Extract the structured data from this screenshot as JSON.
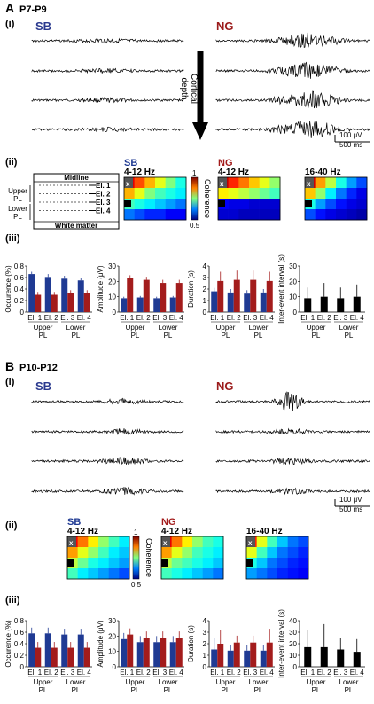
{
  "colors": {
    "sb": "#1f3a93",
    "ng": "#a31c1c",
    "black": "#000000"
  },
  "panels": [
    {
      "id": "A",
      "letter": "A",
      "age": "P7-P9",
      "traces": {
        "label": "(i)",
        "sb_label": "SB",
        "ng_label": "NG",
        "arrow_label": "Cortical\ndepth",
        "scale_amp": "100 μV",
        "scale_time": "500 ms"
      },
      "coherence": {
        "label": "(ii)",
        "schematic": {
          "midline": "Midline",
          "white_matter": "White matter",
          "upper_pl": "Upper\nPL",
          "lower_pl": "Lower\nPL",
          "electrodes": [
            "El. 1",
            "El. 2",
            "El. 3",
            "El. 4"
          ]
        },
        "maps": [
          {
            "group": "SB",
            "band": "4-12 Hz",
            "rows": 4,
            "cols": 6,
            "vals": [
              0.95,
              0.9,
              0.85,
              0.8,
              0.75,
              0.7,
              0.85,
              0.8,
              0.75,
              0.72,
              0.7,
              0.68,
              0.72,
              0.7,
              0.68,
              0.66,
              0.64,
              0.62,
              0.62,
              0.6,
              0.58,
              0.58,
              0.56,
              0.56
            ]
          },
          {
            "group": "NG",
            "band": "4-12 Hz",
            "rows": 4,
            "cols": 6,
            "vals": [
              0.97,
              0.92,
              0.88,
              0.84,
              0.8,
              0.76,
              0.82,
              0.8,
              0.78,
              0.76,
              0.74,
              0.72,
              0.56,
              0.55,
              0.55,
              0.54,
              0.54,
              0.54,
              0.54,
              0.54,
              0.53,
              0.53,
              0.53,
              0.53
            ]
          },
          {
            "group": "",
            "band": "16-40 Hz",
            "rows": 4,
            "cols": 6,
            "vals": [
              0.96,
              0.86,
              0.78,
              0.7,
              0.64,
              0.6,
              0.84,
              0.76,
              0.68,
              0.62,
              0.58,
              0.55,
              0.7,
              0.64,
              0.6,
              0.57,
              0.55,
              0.54,
              0.6,
              0.57,
              0.55,
              0.54,
              0.53,
              0.52
            ]
          }
        ],
        "colorbar": {
          "max": "1",
          "min": "0.5",
          "label": "Coherence"
        }
      },
      "bars": {
        "label": "(iii)",
        "groups": [
          "Upper\nPL",
          "Lower\nPL"
        ],
        "categories": [
          "El. 1",
          "El. 2",
          "El. 3",
          "El. 4"
        ],
        "charts": [
          {
            "ylabel": "Occurence (%)",
            "ylim": [
              0,
              0.8
            ],
            "ticks": [
              "0",
              "0.2",
              "0.4",
              "0.6",
              "0.8"
            ],
            "sb": [
              0.66,
              0.61,
              0.58,
              0.55
            ],
            "ng": [
              0.3,
              0.3,
              0.33,
              0.33
            ],
            "sb_err": [
              0.04,
              0.05,
              0.05,
              0.05
            ],
            "ng_err": [
              0.05,
              0.05,
              0.05,
              0.05
            ]
          },
          {
            "ylabel": "Amplitude (μV)",
            "ylim": [
              0,
              30
            ],
            "ticks": [
              "0",
              "10",
              "20",
              "30"
            ],
            "sb": [
              9,
              9.5,
              9,
              9.5
            ],
            "ng": [
              22,
              21,
              19,
              19
            ],
            "sb_err": [
              1,
              1,
              1,
              1
            ],
            "ng_err": [
              2,
              2,
              2,
              2
            ]
          },
          {
            "ylabel": "Duration (s)",
            "ylim": [
              0,
              4
            ],
            "ticks": [
              "0",
              "1",
              "2",
              "3",
              "4"
            ],
            "sb": [
              1.8,
              1.7,
              1.6,
              1.7
            ],
            "ng": [
              2.7,
              2.8,
              2.8,
              2.7
            ],
            "sb_err": [
              0.3,
              0.3,
              0.3,
              0.3
            ],
            "ng_err": [
              0.8,
              0.8,
              0.8,
              0.8
            ]
          },
          {
            "ylabel": "Inter-event interval (s)",
            "ylim": [
              0,
              30
            ],
            "ticks": [
              "0",
              "10",
              "20",
              "30"
            ],
            "single": [
              9,
              10,
              9,
              10
            ],
            "single_err": [
              7,
              9,
              7,
              8
            ]
          }
        ]
      }
    },
    {
      "id": "B",
      "letter": "B",
      "age": "P10-P12",
      "traces": {
        "label": "(i)",
        "sb_label": "SB",
        "ng_label": "NG",
        "scale_amp": "100 μV",
        "scale_time": "500 ms"
      },
      "coherence": {
        "label": "(ii)",
        "maps": [
          {
            "group": "SB",
            "band": "4-12 Hz",
            "rows": 4,
            "cols": 6,
            "vals": [
              0.94,
              0.88,
              0.82,
              0.76,
              0.72,
              0.68,
              0.86,
              0.8,
              0.76,
              0.72,
              0.68,
              0.66,
              0.78,
              0.74,
              0.7,
              0.68,
              0.66,
              0.64,
              0.72,
              0.68,
              0.66,
              0.64,
              0.62,
              0.6
            ]
          },
          {
            "group": "NG",
            "band": "4-12 Hz",
            "rows": 4,
            "cols": 6,
            "vals": [
              0.95,
              0.88,
              0.82,
              0.76,
              0.72,
              0.7,
              0.86,
              0.8,
              0.76,
              0.72,
              0.7,
              0.68,
              0.78,
              0.74,
              0.72,
              0.7,
              0.68,
              0.66,
              0.72,
              0.7,
              0.68,
              0.66,
              0.64,
              0.62
            ]
          },
          {
            "group": "",
            "band": "16-40 Hz",
            "rows": 4,
            "cols": 6,
            "vals": [
              0.92,
              0.8,
              0.72,
              0.66,
              0.62,
              0.6,
              0.8,
              0.72,
              0.66,
              0.62,
              0.6,
              0.58,
              0.7,
              0.66,
              0.62,
              0.6,
              0.58,
              0.57,
              0.64,
              0.62,
              0.6,
              0.58,
              0.57,
              0.56
            ]
          }
        ],
        "colorbar": {
          "max": "1",
          "min": "0.5",
          "label": "Coherence"
        }
      },
      "bars": {
        "label": "(iii)",
        "groups": [
          "Upper\nPL",
          "Lower\nPL"
        ],
        "categories": [
          "El. 1",
          "El. 2",
          "El. 3",
          "El. 4"
        ],
        "charts": [
          {
            "ylabel": "Occurence (%)",
            "ylim": [
              0,
              0.8
            ],
            "ticks": [
              "0",
              "0.2",
              "0.4",
              "0.6",
              "0.8"
            ],
            "sb": [
              0.58,
              0.58,
              0.56,
              0.56
            ],
            "ng": [
              0.33,
              0.33,
              0.33,
              0.33
            ],
            "sb_err": [
              0.1,
              0.1,
              0.1,
              0.1
            ],
            "ng_err": [
              0.1,
              0.1,
              0.1,
              0.1
            ]
          },
          {
            "ylabel": "Amplitude (μV)",
            "ylim": [
              0,
              30
            ],
            "ticks": [
              "0",
              "10",
              "20",
              "30"
            ],
            "sb": [
              18,
              16,
              16,
              16
            ],
            "ng": [
              21,
              19,
              19,
              19
            ],
            "sb_err": [
              4,
              4,
              4,
              4
            ],
            "ng_err": [
              4,
              4,
              4,
              4
            ]
          },
          {
            "ylabel": "Duration (s)",
            "ylim": [
              0,
              4
            ],
            "ticks": [
              "0",
              "1",
              "2",
              "3",
              "4"
            ],
            "sb": [
              1.5,
              1.4,
              1.4,
              1.4
            ],
            "ng": [
              2.0,
              2.1,
              2.1,
              2.1
            ],
            "sb_err": [
              1,
              0.5,
              0.5,
              0.5
            ],
            "ng_err": [
              1.2,
              0.6,
              0.6,
              1.2
            ]
          },
          {
            "ylabel": "Inter-event interval (s)",
            "ylim": [
              0,
              40
            ],
            "ticks": [
              "0",
              "10",
              "20",
              "30",
              "40"
            ],
            "single": [
              17,
              17,
              15,
              13
            ],
            "single_err": [
              15,
              20,
              10,
              11
            ]
          }
        ]
      }
    }
  ]
}
